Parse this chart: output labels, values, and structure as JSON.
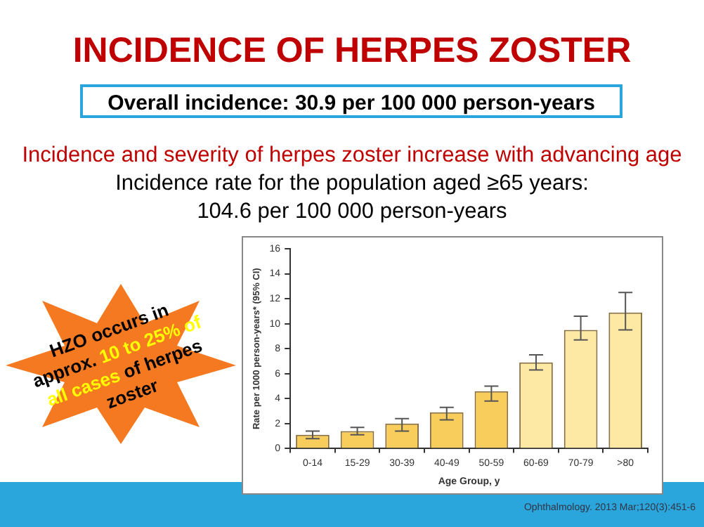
{
  "chart_data": {
    "type": "bar",
    "title": "INCIDENCE OF HERPES ZOSTER",
    "subtitle": "Overall incidence: 30.9 per 100 000 person-years",
    "xlabel": "Age Group, y",
    "ylabel": "Rate per 1000 person-years* (95% CI)",
    "categories": [
      "0-14",
      "15-29",
      "30-39",
      "40-49",
      "50-59",
      "60-69",
      "70-79",
      ">80"
    ],
    "values": [
      1.1,
      1.4,
      2.0,
      2.9,
      4.6,
      6.9,
      9.5,
      10.9
    ],
    "colors": [
      "#f8cd5c",
      "#f8cd5c",
      "#f8cd5c",
      "#f8cd5c",
      "#f8cd5c",
      "#fde9a4",
      "#fde9a4",
      "#fde9a4"
    ],
    "errors": [
      [
        0.8,
        1.4
      ],
      [
        1.1,
        1.7
      ],
      [
        1.4,
        2.4
      ],
      [
        2.3,
        3.3
      ],
      [
        3.8,
        5.0
      ],
      [
        6.3,
        7.5
      ],
      [
        8.7,
        10.6
      ],
      [
        9.5,
        12.5
      ]
    ],
    "ylim": [
      0,
      16
    ],
    "yticks": [
      0,
      2,
      4,
      6,
      8,
      10,
      12,
      14,
      16
    ],
    "grid": false,
    "legend": false,
    "annotations": [
      "Incidence and severity of herpes zoster increase with advancing age",
      "Incidence rate for the population aged ≥65 years:",
      "104.6 per 100 000 person-years",
      "HZO occurs in approx.",
      "10 to 25% of all cases",
      "of herpes zoster",
      "Ophthalmology. 2013 Mar;120(3):451-6"
    ]
  }
}
